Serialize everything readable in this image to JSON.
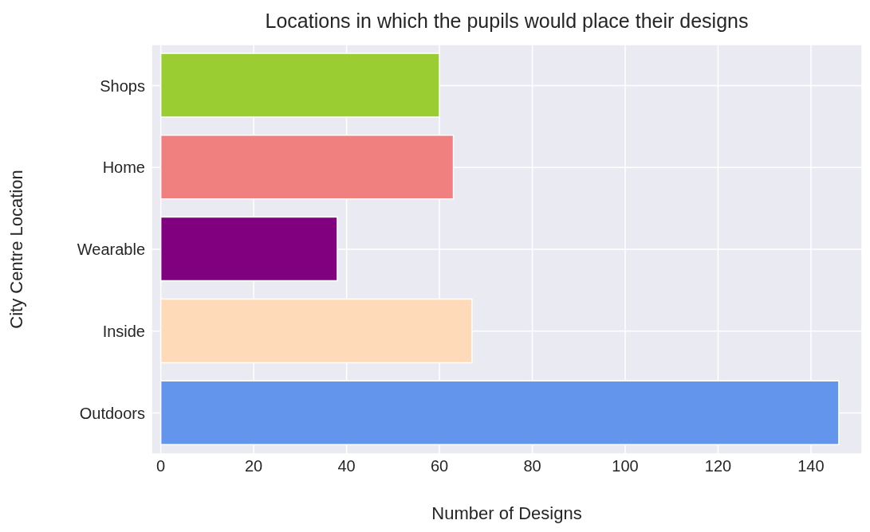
{
  "chart_data": {
    "type": "bar",
    "orientation": "horizontal",
    "title": "Locations in which the pupils would place their designs",
    "xlabel": "Number of Designs",
    "ylabel": "City Centre Location",
    "categories": [
      "Shops",
      "Home",
      "Wearable",
      "Inside",
      "Outdoors"
    ],
    "values": [
      60,
      63,
      38,
      67,
      146
    ],
    "colors": [
      "#9acd32",
      "#f08080",
      "#800080",
      "#ffdab9",
      "#6495ed"
    ],
    "xlim": [
      -2,
      151
    ],
    "xticks": [
      0,
      20,
      40,
      60,
      80,
      100,
      120,
      140
    ],
    "grid": true
  }
}
